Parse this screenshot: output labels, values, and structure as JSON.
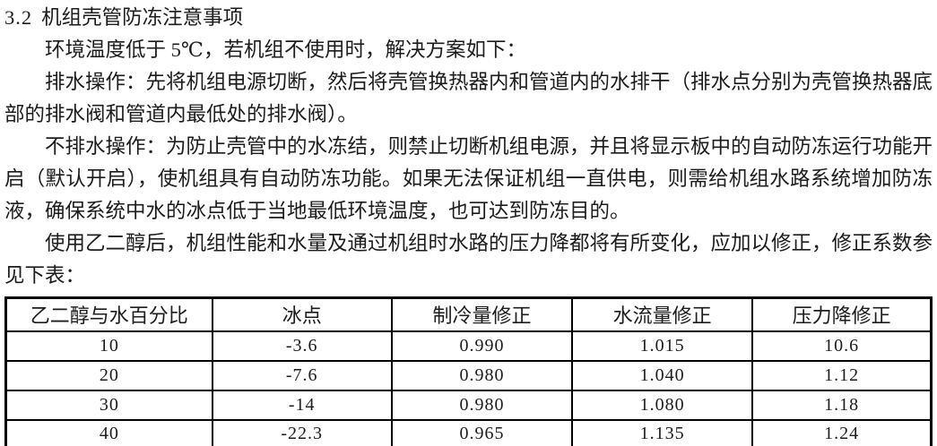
{
  "document": {
    "heading": {
      "number": "3.2",
      "title": "机组壳管防冻注意事项"
    },
    "paragraphs": [
      "环境温度低于 5℃，若机组不使用时，解决方案如下：",
      "排水操作：先将机组电源切断，然后将壳管换热器内和管道内的水排干（排水点分别为壳管换热器底部的排水阀和管道内最低处的排水阀）。",
      "不排水操作：为防止壳管中的水冻结，则禁止切断机组电源，并且将显示板中的自动防冻运行功能开启（默认开启），使机组具有自动防冻功能。如果无法保证机组一直供电，则需给机组水路系统增加防冻液，确保系统中水的冰点低于当地最低环境温度，也可达到防冻目的。",
      "使用乙二醇后，机组性能和水量及通过机组时水路的压力降都将有所变化，应加以修正，修正系数参见下表："
    ],
    "table": {
      "headers": [
        "乙二醇与水百分比",
        "冰点",
        "制冷量修正",
        "水流量修正",
        "压力降修正"
      ],
      "rows": [
        [
          "10",
          "-3.6",
          "0.990",
          "1.015",
          "10.6"
        ],
        [
          "20",
          "-7.6",
          "0.980",
          "1.040",
          "1.12"
        ],
        [
          "30",
          "-14",
          "0.980",
          "1.080",
          "1.18"
        ],
        [
          "40",
          "-22.3",
          "0.965",
          "1.135",
          "1.24"
        ]
      ]
    },
    "colors": {
      "text": "#1c1c1c",
      "background": "#ffffff",
      "table_border": "#000000"
    }
  }
}
